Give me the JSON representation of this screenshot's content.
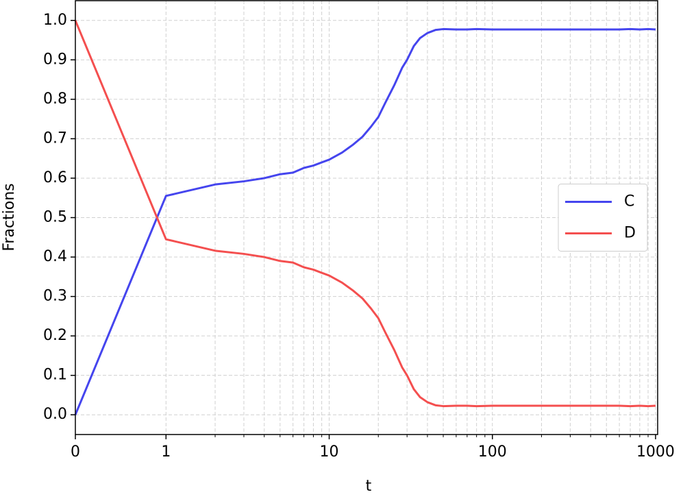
{
  "chart_data": {
    "type": "line",
    "x_label": "t",
    "y_label": "Fractions",
    "x": [
      0,
      1,
      2,
      3,
      4,
      5,
      6,
      7,
      8,
      9,
      10,
      12,
      14,
      16,
      18,
      20,
      22,
      25,
      28,
      30,
      33,
      36,
      40,
      45,
      50,
      60,
      70,
      80,
      100,
      150,
      200,
      300,
      400,
      500,
      600,
      700,
      800,
      900,
      1000
    ],
    "series": [
      {
        "name": "C",
        "color": "#4545ee",
        "values": [
          0,
          0.555,
          0.584,
          0.592,
          0.6,
          0.61,
          0.614,
          0.626,
          0.632,
          0.64,
          0.647,
          0.665,
          0.685,
          0.705,
          0.73,
          0.755,
          0.79,
          0.835,
          0.88,
          0.9,
          0.935,
          0.955,
          0.968,
          0.976,
          0.978,
          0.977,
          0.977,
          0.978,
          0.977,
          0.977,
          0.977,
          0.977,
          0.977,
          0.977,
          0.977,
          0.978,
          0.977,
          0.978,
          0.977
        ]
      },
      {
        "name": "D",
        "color": "#f44f4f",
        "values": [
          1,
          0.445,
          0.416,
          0.408,
          0.4,
          0.39,
          0.386,
          0.374,
          0.368,
          0.36,
          0.353,
          0.335,
          0.315,
          0.295,
          0.27,
          0.245,
          0.21,
          0.165,
          0.12,
          0.1,
          0.065,
          0.045,
          0.032,
          0.024,
          0.022,
          0.023,
          0.023,
          0.022,
          0.023,
          0.023,
          0.023,
          0.023,
          0.023,
          0.023,
          0.023,
          0.022,
          0.023,
          0.022,
          0.023
        ]
      }
    ],
    "xscale": "symlog",
    "linthresh": 1,
    "linscale": 0.5,
    "xlim": [
      0,
      1030
    ],
    "ylim": [
      -0.05,
      1.05
    ],
    "xticks": [
      0,
      1,
      10,
      100,
      1000
    ],
    "xminorticks": [
      2,
      3,
      4,
      5,
      6,
      7,
      8,
      9,
      20,
      30,
      40,
      50,
      60,
      70,
      80,
      90,
      200,
      300,
      400,
      500,
      600,
      700,
      800,
      900
    ],
    "yticks": [
      {
        "value": 0,
        "label": "0.0"
      },
      {
        "value": 0.1,
        "label": "0.1"
      },
      {
        "value": 0.2,
        "label": "0.2"
      },
      {
        "value": 0.3,
        "label": "0.3"
      },
      {
        "value": 0.4,
        "label": "0.4"
      },
      {
        "value": 0.5,
        "label": "0.5"
      },
      {
        "value": 0.6,
        "label": "0.6"
      },
      {
        "value": 0.7,
        "label": "0.7"
      },
      {
        "value": 0.8,
        "label": "0.8"
      },
      {
        "value": 0.9,
        "label": "0.9"
      },
      {
        "value": 1,
        "label": "1.0"
      }
    ],
    "grid": true,
    "legend": "center right"
  }
}
